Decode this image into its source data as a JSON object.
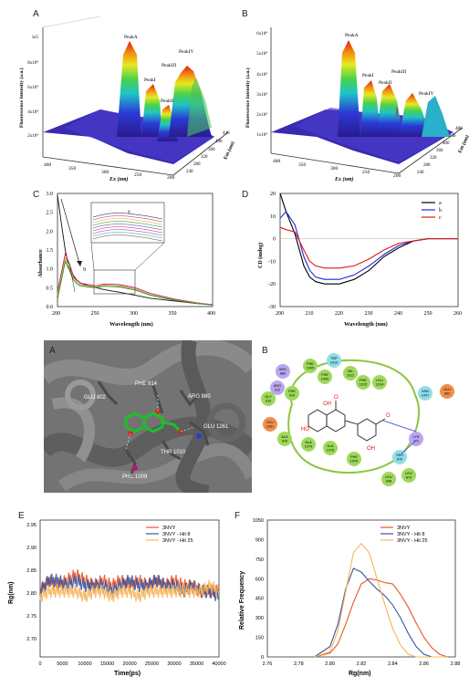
{
  "panels": {
    "A3d": {
      "label": "A",
      "ylabel": "Fluorescence intensity (a.u.)",
      "xlabel": "Ex (nm)",
      "zlabel": "Em (nm)",
      "yticks": [
        "1e5",
        "8x10⁴",
        "6x10⁴",
        "4x10⁴",
        "2x10⁴"
      ],
      "xticks": [
        "400",
        "350",
        "300",
        "250",
        "200"
      ],
      "zticks": [
        "440",
        "400",
        "360",
        "320",
        "280",
        "240"
      ],
      "peaks": [
        "PeakA",
        "PeakI",
        "PeakII",
        "PeakIII",
        "PeakIV"
      ]
    },
    "B3d": {
      "label": "B",
      "ylabel": "Fluorescence intensity (a.u.)",
      "xlabel": "Ex (nm)",
      "zlabel": "Em (nm)",
      "yticks": [
        "6x10⁴",
        "5x10⁴",
        "4x10⁴",
        "3x10⁴",
        "2x10⁴",
        "1x10⁴"
      ],
      "xticks": [
        "400",
        "350",
        "300",
        "250",
        "200"
      ],
      "zticks": [
        "480",
        "440",
        "400",
        "360",
        "320",
        "280",
        "240"
      ],
      "peaks": [
        "PeakA",
        "PeakI",
        "PeakII",
        "PeakIII",
        "PeakIV"
      ]
    },
    "C": {
      "label": "C",
      "ylabel": "Absorbance",
      "xlabel": "Wavelength (nm)",
      "xticks": [
        "200",
        "250",
        "300",
        "350",
        "400"
      ],
      "yticks": [
        "3.0",
        "2.5",
        "2.0",
        "1.5",
        "1.0",
        "0.5",
        "0.0"
      ],
      "arrow_labels": [
        "9",
        "1"
      ],
      "inset_label": "9"
    },
    "D": {
      "label": "D",
      "ylabel": "CD (mdeg)",
      "xlabel": "Wavelength (nm)",
      "xticks": [
        "200",
        "210",
        "220",
        "230",
        "240",
        "250",
        "260"
      ],
      "yticks": [
        "20",
        "10",
        "0",
        "-10",
        "-20",
        "-30"
      ],
      "legend": [
        {
          "name": "a",
          "color": "#000000"
        },
        {
          "name": "b",
          "color": "#1a2bd6"
        },
        {
          "name": "c",
          "color": "#e01818"
        }
      ]
    },
    "dock3d": {
      "label": "A",
      "residues": [
        "PHE 914",
        "GLU 802",
        "ARG 880",
        "GLU 1261",
        "THR 1010",
        "PHE 1009"
      ]
    },
    "dock2d": {
      "label": "B",
      "residues": [
        "PHE 1005",
        "TRP 1010",
        "ARG 880",
        "PHE 1009",
        "VAL 1011",
        "ARG 912",
        "PHE 1015",
        "LEU 1014",
        "GLY 913",
        "PHE 914",
        "ASN 1007",
        "GLU 802",
        "GLU 1261",
        "ALA 910",
        "ALA 1079",
        "ALA 1078",
        "LYS 771",
        "PHE 1076",
        "SER 876",
        "LEU 873",
        "LEU 648"
      ],
      "atoms": [
        "OH",
        "HO",
        "O",
        "OH",
        "O"
      ]
    },
    "E": {
      "label": "E",
      "ylabel": "Rg(nm)",
      "xlabel": "Time(ps)",
      "xticks": [
        "0",
        "5000",
        "10000",
        "15000",
        "20000",
        "25000",
        "30000",
        "35000",
        "40000"
      ],
      "yticks": [
        "2.95",
        "2.90",
        "2.85",
        "2.80",
        "2.75",
        "2.70"
      ],
      "legend": [
        {
          "name": "3NVY",
          "color": "#e8542a"
        },
        {
          "name": "3NVY - Hit 8",
          "color": "#3b55a0"
        },
        {
          "name": "3NVY - Hit 25",
          "color": "#f7b45a"
        }
      ]
    },
    "F": {
      "label": "F",
      "ylabel": "Relative Frequency",
      "xlabel": "Rg(nm)",
      "xticks": [
        "2.76",
        "2.78",
        "2.80",
        "2.82",
        "2.84",
        "2.86",
        "2.88"
      ],
      "yticks": [
        "1050",
        "900",
        "750",
        "600",
        "450",
        "300",
        "150",
        "0"
      ],
      "legend": [
        {
          "name": "3NVY",
          "color": "#e8542a"
        },
        {
          "name": "3NVY - Hit 8",
          "color": "#3b55a0"
        },
        {
          "name": "3NVY - Hit 25",
          "color": "#f7b45a"
        }
      ]
    }
  },
  "chart_data": [
    {
      "type": "line",
      "title": "",
      "xlabel": "Wavelength (nm)",
      "ylabel": "Absorbance",
      "xlim": [
        200,
        400
      ],
      "ylim": [
        0,
        3.0
      ],
      "x": [
        200,
        205,
        210,
        215,
        220,
        225,
        230,
        240,
        250,
        260,
        280,
        300,
        320,
        350,
        380,
        400
      ],
      "series": [
        {
          "values": [
            2.95,
            2.2,
            1.5,
            1.0,
            0.8,
            0.7,
            0.62,
            0.55,
            0.5,
            0.45,
            0.38,
            0.3,
            0.22,
            0.15,
            0.08,
            0.05
          ]
        },
        {
          "values": [
            0.4,
            0.9,
            1.4,
            1.15,
            0.85,
            0.7,
            0.62,
            0.58,
            0.55,
            0.6,
            0.58,
            0.5,
            0.35,
            0.2,
            0.1,
            0.05
          ]
        },
        {
          "values": [
            0.3,
            0.8,
            1.3,
            1.05,
            0.78,
            0.65,
            0.58,
            0.55,
            0.52,
            0.57,
            0.55,
            0.47,
            0.32,
            0.18,
            0.09,
            0.04
          ]
        },
        {
          "values": [
            0.2,
            0.7,
            1.2,
            0.98,
            0.72,
            0.6,
            0.55,
            0.52,
            0.5,
            0.54,
            0.52,
            0.44,
            0.3,
            0.17,
            0.08,
            0.04
          ]
        }
      ]
    },
    {
      "type": "line",
      "title": "",
      "xlabel": "Wavelength (nm)",
      "ylabel": "CD (mdeg)",
      "xlim": [
        200,
        260
      ],
      "ylim": [
        -30,
        20
      ],
      "x": [
        200,
        202,
        205,
        208,
        210,
        212,
        215,
        218,
        220,
        225,
        230,
        235,
        240,
        245,
        250,
        255,
        260
      ],
      "series": [
        {
          "name": "a",
          "values": [
            20,
            12,
            2,
            -12,
            -17,
            -19,
            -20,
            -20,
            -20,
            -18,
            -14,
            -8,
            -4,
            -1,
            0,
            0,
            0
          ]
        },
        {
          "name": "b",
          "values": [
            9,
            12,
            6,
            -8,
            -14,
            -17,
            -18,
            -18,
            -18,
            -16,
            -12,
            -7,
            -3,
            -1,
            0,
            0,
            0
          ]
        },
        {
          "name": "c",
          "values": [
            5,
            4,
            3,
            -5,
            -10,
            -12,
            -13,
            -13,
            -13,
            -12,
            -9,
            -5,
            -2,
            -1,
            0,
            0,
            0
          ]
        }
      ]
    },
    {
      "type": "line",
      "title": "",
      "xlabel": "Time(ps)",
      "ylabel": "Rg(nm)",
      "xlim": [
        0,
        40000
      ],
      "ylim": [
        2.7,
        2.95
      ],
      "x": [
        0,
        2000,
        4000,
        6000,
        8000,
        10000,
        12000,
        14000,
        16000,
        18000,
        20000,
        22000,
        24000,
        26000,
        28000,
        30000,
        32000,
        34000,
        36000,
        38000,
        40000
      ],
      "series": [
        {
          "name": "3NVY",
          "values": [
            2.82,
            2.84,
            2.83,
            2.84,
            2.85,
            2.84,
            2.83,
            2.84,
            2.83,
            2.84,
            2.83,
            2.84,
            2.83,
            2.84,
            2.83,
            2.84,
            2.83,
            2.83,
            2.82,
            2.82,
            2.82
          ]
        },
        {
          "name": "3NVY - Hit 8",
          "values": [
            2.82,
            2.84,
            2.84,
            2.83,
            2.84,
            2.83,
            2.83,
            2.83,
            2.82,
            2.83,
            2.84,
            2.83,
            2.83,
            2.84,
            2.83,
            2.83,
            2.82,
            2.83,
            2.82,
            2.82,
            2.81
          ]
        },
        {
          "name": "3NVY - Hit 25",
          "values": [
            2.81,
            2.82,
            2.82,
            2.82,
            2.82,
            2.81,
            2.82,
            2.82,
            2.81,
            2.82,
            2.82,
            2.81,
            2.82,
            2.82,
            2.82,
            2.82,
            2.82,
            2.82,
            2.82,
            2.83,
            2.82
          ]
        }
      ]
    },
    {
      "type": "line",
      "title": "",
      "xlabel": "Rg(nm)",
      "ylabel": "Relative Frequency",
      "xlim": [
        2.76,
        2.88
      ],
      "ylim": [
        0,
        1050
      ],
      "x": [
        2.79,
        2.8,
        2.805,
        2.81,
        2.815,
        2.82,
        2.825,
        2.83,
        2.835,
        2.84,
        2.845,
        2.85,
        2.855,
        2.86,
        2.865,
        2.87,
        2.875
      ],
      "series": [
        {
          "name": "3NVY",
          "values": [
            0,
            30,
            100,
            250,
            420,
            560,
            600,
            590,
            570,
            560,
            480,
            380,
            260,
            150,
            70,
            20,
            0
          ]
        },
        {
          "name": "3NVY - Hit 8",
          "values": [
            0,
            80,
            250,
            520,
            680,
            650,
            580,
            520,
            470,
            400,
            300,
            180,
            80,
            20,
            0,
            0,
            0
          ]
        },
        {
          "name": "3NVY - Hit 25",
          "values": [
            0,
            40,
            200,
            500,
            800,
            870,
            800,
            600,
            400,
            220,
            90,
            20,
            0,
            0,
            0,
            0,
            0
          ]
        }
      ]
    }
  ]
}
